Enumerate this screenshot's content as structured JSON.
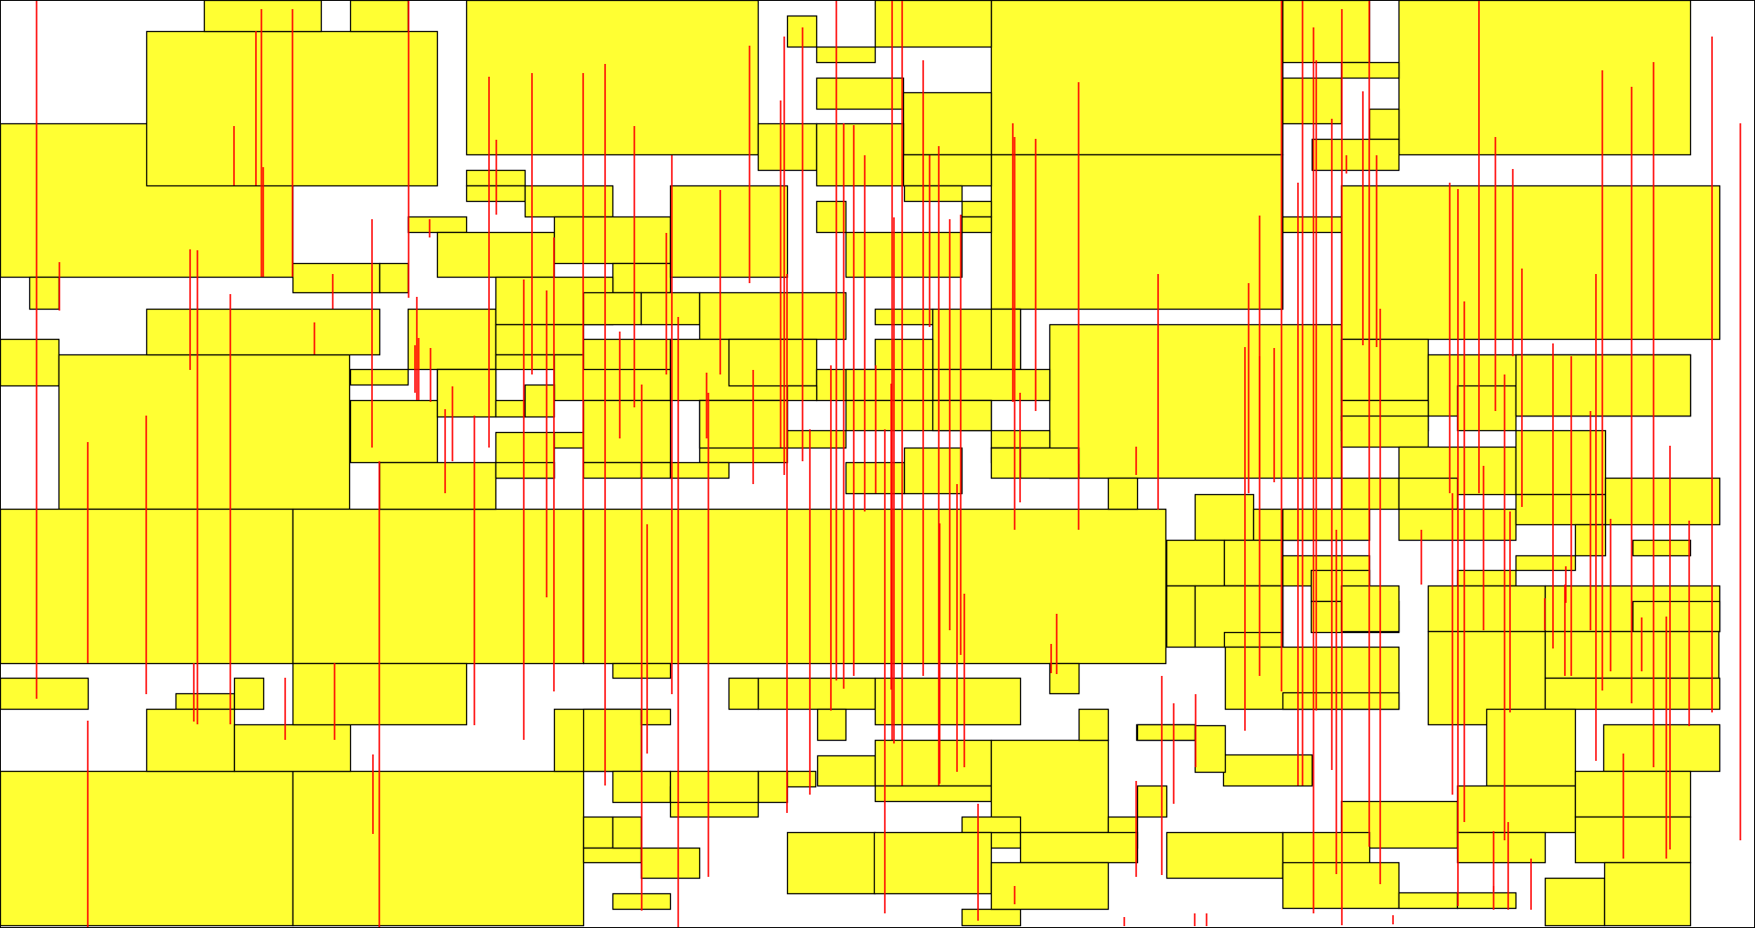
{
  "colors": {
    "background": "#ffffff",
    "rect_fill": "#ffff33",
    "rect_stroke": "#000000",
    "line_stroke": "#ff0000"
  }
}
